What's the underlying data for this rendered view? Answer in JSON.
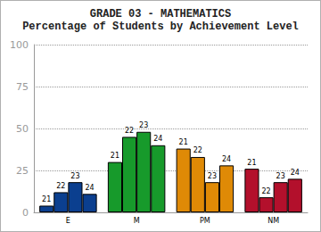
{
  "chart_data": {
    "type": "bar",
    "title": "GRADE 03 - MATHEMATICS",
    "subtitle": "Percentage of Students by Achievement Level",
    "categories": [
      "E",
      "M",
      "PM",
      "NM"
    ],
    "colors": [
      "#0b3f8f",
      "#179a2b",
      "#df8a06",
      "#b3102c"
    ],
    "series": [
      {
        "name": "21",
        "values": [
          4,
          30,
          38,
          26
        ]
      },
      {
        "name": "22",
        "values": [
          12,
          45,
          33,
          9
        ]
      },
      {
        "name": "23",
        "values": [
          18,
          48,
          18,
          18
        ]
      },
      {
        "name": "24",
        "values": [
          11,
          40,
          28,
          20
        ]
      }
    ],
    "ylim": [
      0,
      100
    ],
    "yticks": [
      0,
      25,
      50,
      75,
      100
    ],
    "grid": true
  }
}
